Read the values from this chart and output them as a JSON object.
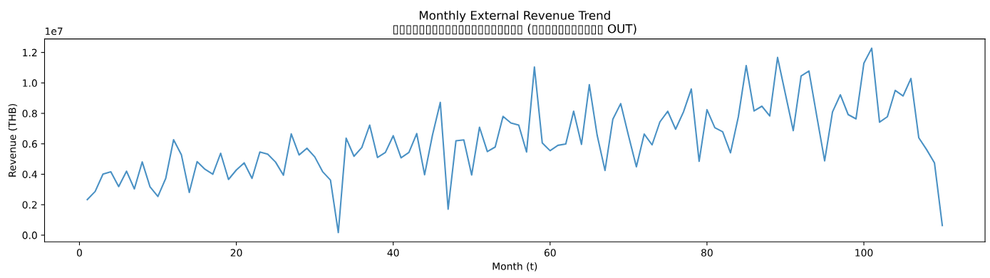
{
  "chart_data": {
    "type": "line",
    "title": "Monthly External Revenue Trend",
    "subtitle": "▯▯▯▯▯▯▯▯▯▯▯▯▯▯▯▯▯▯▯▯ (▯▯▯▯▯▯▯▯▯▯▯ OUT)",
    "xlabel": "Month (t)",
    "ylabel": "Revenue (THB)",
    "annotations": [
      "1e7"
    ],
    "x": [
      1,
      2,
      3,
      4,
      5,
      6,
      7,
      8,
      9,
      10,
      11,
      12,
      13,
      14,
      15,
      16,
      17,
      18,
      19,
      20,
      21,
      22,
      23,
      24,
      25,
      26,
      27,
      28,
      29,
      30,
      31,
      32,
      33,
      34,
      35,
      36,
      37,
      38,
      39,
      40,
      41,
      42,
      43,
      44,
      45,
      46,
      47,
      48,
      49,
      50,
      51,
      52,
      53,
      54,
      55,
      56,
      57,
      58,
      59,
      60,
      61,
      62,
      63,
      64,
      65,
      66,
      67,
      68,
      69,
      70,
      71,
      72,
      73,
      74,
      75,
      76,
      77,
      78,
      79,
      80,
      81,
      82,
      83,
      84,
      85,
      86,
      87,
      88,
      89,
      90,
      91,
      92,
      93,
      94,
      95,
      96,
      97,
      98,
      99,
      100,
      101,
      102,
      103,
      104,
      105,
      106,
      107,
      108,
      109,
      110
    ],
    "series": [
      {
        "color": "#4a91c4",
        "values": [
          0.234,
          0.287,
          0.401,
          0.416,
          0.319,
          0.42,
          0.304,
          0.481,
          0.317,
          0.254,
          0.373,
          0.627,
          0.527,
          0.281,
          0.483,
          0.433,
          0.4,
          0.538,
          0.366,
          0.428,
          0.475,
          0.373,
          0.546,
          0.532,
          0.48,
          0.394,
          0.665,
          0.527,
          0.571,
          0.514,
          0.417,
          0.362,
          0.017,
          0.637,
          0.518,
          0.576,
          0.723,
          0.51,
          0.543,
          0.653,
          0.508,
          0.543,
          0.667,
          0.397,
          0.656,
          0.872,
          0.171,
          0.62,
          0.626,
          0.395,
          0.709,
          0.549,
          0.579,
          0.78,
          0.737,
          0.723,
          0.546,
          1.104,
          0.606,
          0.555,
          0.59,
          0.599,
          0.814,
          0.596,
          0.988,
          0.656,
          0.425,
          0.762,
          0.864,
          0.653,
          0.449,
          0.664,
          0.593,
          0.744,
          0.814,
          0.696,
          0.809,
          0.96,
          0.485,
          0.824,
          0.706,
          0.679,
          0.541,
          0.778,
          1.114,
          0.816,
          0.847,
          0.783,
          1.167,
          0.927,
          0.687,
          1.045,
          1.078,
          0.781,
          0.488,
          0.809,
          0.922,
          0.792,
          0.764,
          1.129,
          1.228,
          0.742,
          0.778,
          0.951,
          0.914,
          1.029,
          0.64,
          0.562,
          0.475,
          0.064
        ]
      }
    ],
    "xlim": [
      -4.45,
      115.45
    ],
    "xticks": [
      0,
      20,
      40,
      60,
      80,
      100
    ],
    "ylim": [
      -0.044,
      1.289
    ],
    "yticks": [
      {
        "value": 0,
        "label": "0.0"
      },
      0.2,
      0.4,
      0.6,
      0.8,
      {
        "value": 1,
        "label": "1.0"
      },
      1.2
    ],
    "grid": false,
    "legend": false
  }
}
